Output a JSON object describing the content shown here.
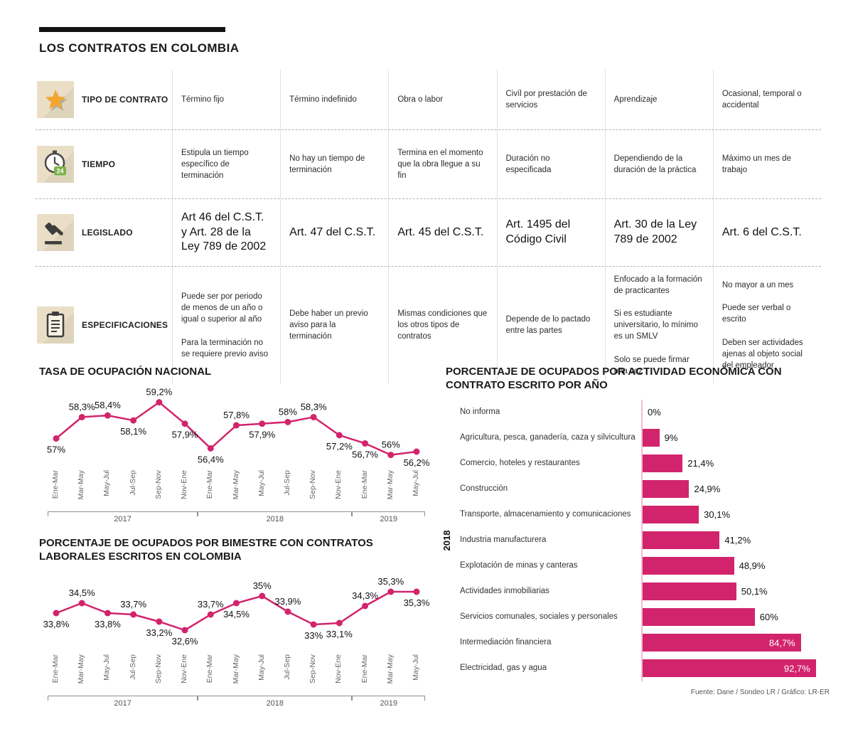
{
  "colors": {
    "accent": "#d2246c",
    "icon_bg": "#eadfc6",
    "axis_line": "#f2bdd1"
  },
  "header": {
    "title": "LOS CONTRATOS EN COLOMBIA"
  },
  "table": {
    "rows": [
      {
        "icon": "star-icon",
        "label": "TIPO DE CONTRATO",
        "cells": [
          "Término fijo",
          "Término indefinido",
          "Obra o labor",
          "Civíl por prestación de servicios",
          "Aprendizaje",
          "Ocasional, temporal o accidental"
        ]
      },
      {
        "icon": "clock-icon",
        "label": "TIEMPO",
        "cells": [
          "Estipula un tiempo específico de terminación",
          "No hay un tiempo de terminación",
          "Termina en el momento que la obra llegue a su fin",
          "Duración no especificada",
          "Dependiendo de la duración de la práctica",
          "Máximo un mes de trabajo"
        ]
      },
      {
        "icon": "gavel-icon",
        "label": "LEGISLADO",
        "cells": [
          "Art 46 del C.S.T. y Art. 28 de la Ley 789 de 2002",
          "Art. 47 del C.S.T.",
          "Art. 45 del C.S.T.",
          "Art. 1495 del Código Civil",
          "Art. 30 de la Ley 789 de 2002",
          "Art. 6 del C.S.T."
        ]
      },
      {
        "icon": "clipboard-icon",
        "label": "ESPECIFICACIONES",
        "cells": [
          "Puede ser por periodo de menos de un año o igual o superior al año\n\nPara la terminación no se requiere previo aviso",
          "Debe haber un previo aviso para la terminación",
          "Mismas condiciones que los otros tipos de contratos",
          "Depende de lo pactado entre las partes",
          "Enfocado a la formación de practicantes\n\nSi es estudiante universitario, lo mínimo es un SMLV\n\nSolo se puede firmar una vez",
          "No mayor a un mes\n\nPuede ser verbal o escrito\n\nDeben ser actividades ajenas al objeto social del empleador"
        ]
      }
    ]
  },
  "chart_data": [
    {
      "type": "line",
      "title": "TASA DE OCUPACIÓN NACIONAL",
      "x": [
        "Ene-Mar",
        "Mar-May",
        "May-Jul",
        "Jul-Sep",
        "Sep-Nov",
        "Nov-Ene",
        "Ene-Mar",
        "Mar-May",
        "May-Jul",
        "Jul-Sep",
        "Sep-Nov",
        "Nov-Ene",
        "Ene-Mar",
        "Mar-May",
        "May-Jul"
      ],
      "values": [
        57,
        58.3,
        58.4,
        58.1,
        59.2,
        57.9,
        56.4,
        57.8,
        57.9,
        58,
        58.3,
        57.2,
        56.7,
        56,
        56.2
      ],
      "point_labels": [
        "57%",
        "58,3%",
        "58,4%",
        "58,1%",
        "59,2%",
        "57,9%",
        "56,4%",
        "57,8%",
        "57,9%",
        "58%",
        "58,3%",
        "57,2%",
        "56,7%",
        "56%",
        "56,2%"
      ],
      "label_positions": [
        "below",
        "above",
        "above",
        "below",
        "above",
        "below",
        "below",
        "above",
        "below",
        "above",
        "above",
        "below",
        "below",
        "above",
        "below"
      ],
      "ylim": [
        56.2,
        59.4
      ],
      "grid": false,
      "year_groups": [
        {
          "label": "2017",
          "from": 0,
          "to": 5
        },
        {
          "label": "2018",
          "from": 6,
          "to": 11
        },
        {
          "label": "2019",
          "from": 12,
          "to": 14
        }
      ]
    },
    {
      "type": "line",
      "title": "PORCENTAJE DE OCUPADOS POR BIMESTRE CON CONTRATOS LABORALES ESCRITOS EN COLOMBIA",
      "x": [
        "Ene-Mar",
        "Mar-May",
        "May-Jul",
        "Jul-Sep",
        "Sep-Nov",
        "Nov-Ene",
        "Ene-Mar",
        "Mar-May",
        "May-Jul",
        "Jul-Sep",
        "Sep-Nov",
        "Nov-Ene",
        "Ene-Mar",
        "Mar-May",
        "May-Jul"
      ],
      "values": [
        33.8,
        34.5,
        33.8,
        33.7,
        33.2,
        32.6,
        33.7,
        34.5,
        35,
        33.9,
        33,
        33.1,
        34.3,
        35.3,
        35.3
      ],
      "point_labels": [
        "33,8%",
        "34,5%",
        "33,8%",
        "33,7%",
        "33,2%",
        "32,6%",
        "33,7%",
        "34,5%",
        "35%",
        "33,9%",
        "33%",
        "33,1%",
        "34,3%",
        "35,3%",
        "35,3%"
      ],
      "label_positions": [
        "below",
        "above",
        "below",
        "above",
        "below",
        "below",
        "above",
        "below",
        "above",
        "above",
        "below",
        "below",
        "above",
        "above",
        "below"
      ],
      "ylim": [
        32.2,
        35.9
      ],
      "grid": false,
      "year_groups": [
        {
          "label": "2017",
          "from": 0,
          "to": 5
        },
        {
          "label": "2018",
          "from": 6,
          "to": 11
        },
        {
          "label": "2019",
          "from": 12,
          "to": 14
        }
      ]
    },
    {
      "type": "bar",
      "title": "PORCENTAJE DE OCUPADOS POR ACTIVIDAD ECONÓMICA CON CONTRATO ESCRITO POR AÑO",
      "year_label": "2018",
      "orientation": "horizontal",
      "xlim": [
        0,
        100
      ],
      "categories": [
        "No informa",
        "Agricultura, pesca, ganadería, caza y silvicultura",
        "Comercio, hoteles y restaurantes",
        "Construcción",
        "Transporte, almacenamiento y comunicaciones",
        "Industria manufacturera",
        "Explotación de minas y canteras",
        "Actividades inmobiliarias",
        "Servicios comunales, sociales y personales",
        "Intermediación financiera",
        "Electricidad, gas y agua"
      ],
      "values": [
        0,
        9,
        21.4,
        24.9,
        30.1,
        41.2,
        48.9,
        50.1,
        60,
        84.7,
        92.7
      ],
      "value_labels": [
        "0%",
        "9%",
        "21,4%",
        "24,9%",
        "30,1%",
        "41,2%",
        "48,9%",
        "50,1%",
        "60%",
        "84,7%",
        "92,7%"
      ],
      "label_inside": [
        false,
        false,
        false,
        false,
        false,
        false,
        false,
        false,
        false,
        true,
        true
      ]
    }
  ],
  "source": "Fuente: Dane / Sondeo LR / Gráfico: LR-ER"
}
